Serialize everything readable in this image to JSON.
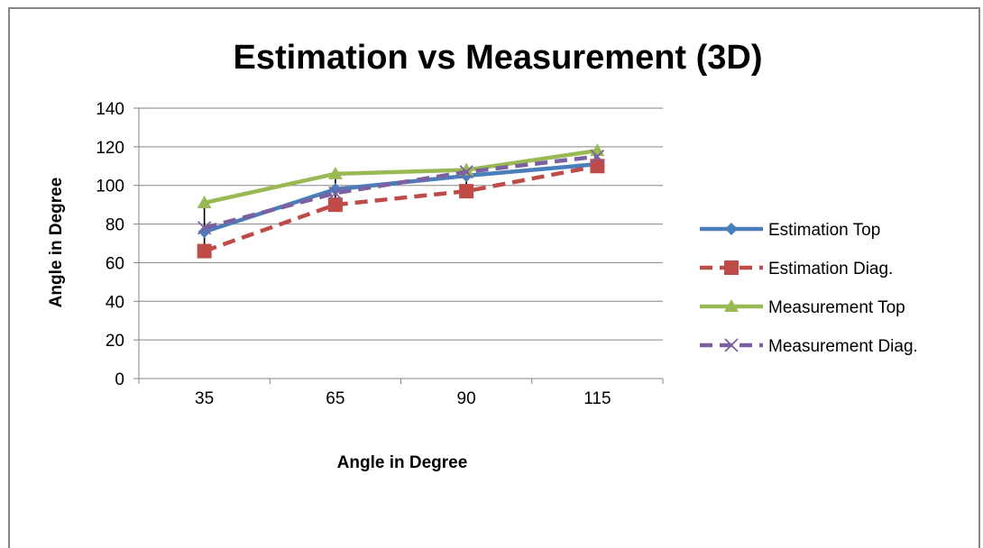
{
  "chart_data": {
    "type": "line",
    "title": "Estimation vs Measurement (3D)",
    "xlabel": "Angle in Degree",
    "ylabel": "Angle in Degree",
    "categories": [
      "35",
      "65",
      "90",
      "115"
    ],
    "ylim": [
      0,
      140
    ],
    "yticks": [
      "0",
      "20",
      "40",
      "60",
      "80",
      "100",
      "120",
      "140"
    ],
    "grid": true,
    "legend_position": "right",
    "series": [
      {
        "name": "Estimation Top",
        "values": [
          76,
          98,
          105,
          111
        ],
        "color": "#4a7ebb",
        "dash": "solid",
        "marker": "diamond"
      },
      {
        "name": "Estimation Diag.",
        "values": [
          66,
          90,
          97,
          110
        ],
        "color": "#be4b48",
        "dash": "dashed",
        "marker": "square"
      },
      {
        "name": "Measurement Top",
        "values": [
          91,
          106,
          108,
          118
        ],
        "color": "#98b954",
        "dash": "solid",
        "marker": "triangle"
      },
      {
        "name": "Measurement Diag.",
        "values": [
          78,
          96,
          107,
          115
        ],
        "color": "#7d60a0",
        "dash": "dashed",
        "marker": "x"
      }
    ],
    "error_bars": {
      "series": "Measurement Diag.",
      "low": [
        66,
        90,
        99,
        111
      ],
      "high": [
        90,
        105,
        110,
        117
      ],
      "color": "#000000"
    }
  }
}
